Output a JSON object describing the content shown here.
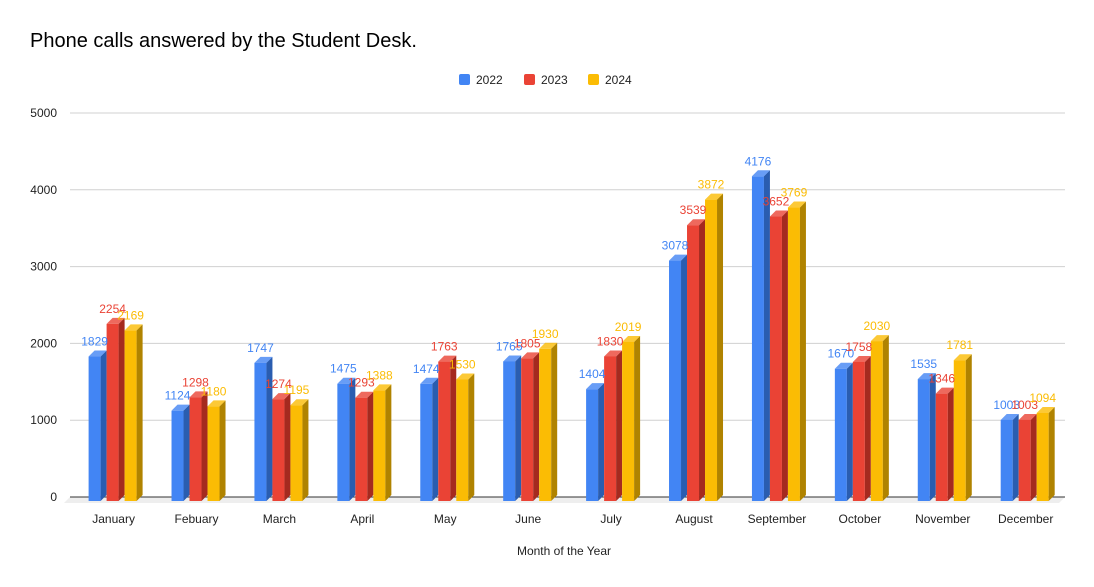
{
  "chart_data": {
    "type": "bar",
    "title": "Phone calls answered by the Student Desk.",
    "xlabel": "Month of the Year",
    "ylabel": "",
    "ylim": [
      0,
      5000
    ],
    "yticks": [
      0,
      1000,
      2000,
      3000,
      4000,
      5000
    ],
    "grid": true,
    "legend_position": "top",
    "three_d": true,
    "categories": [
      "January",
      "Febuary",
      "March",
      "April",
      "May",
      "June",
      "July",
      "August",
      "September",
      "October",
      "November",
      "December"
    ],
    "series": [
      {
        "name": "2022",
        "color": "#4285F4",
        "side_color": "#2A5DB0",
        "values": [
          1829,
          1124,
          1747,
          1475,
          1474,
          1765,
          1404,
          3078,
          4176,
          1670,
          1535,
          1003
        ]
      },
      {
        "name": "2023",
        "color": "#EA4335",
        "side_color": "#A52A1F",
        "values": [
          2254,
          1298,
          1274,
          1293,
          1763,
          1805,
          1830,
          3539,
          3652,
          1758,
          1346,
          1003
        ]
      },
      {
        "name": "2024",
        "color": "#FBBC04",
        "side_color": "#B08300",
        "values": [
          2169,
          1180,
          1195,
          1388,
          1530,
          1930,
          2019,
          3872,
          3769,
          2030,
          1781,
          1094
        ]
      }
    ]
  }
}
